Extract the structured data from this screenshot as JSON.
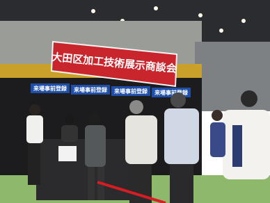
{
  "banner": {
    "title": "大田区加工技術展示商談会"
  },
  "signs": [
    "来場事前登録",
    "来場事前登録",
    "来場事前登録",
    "来場事前登録"
  ]
}
